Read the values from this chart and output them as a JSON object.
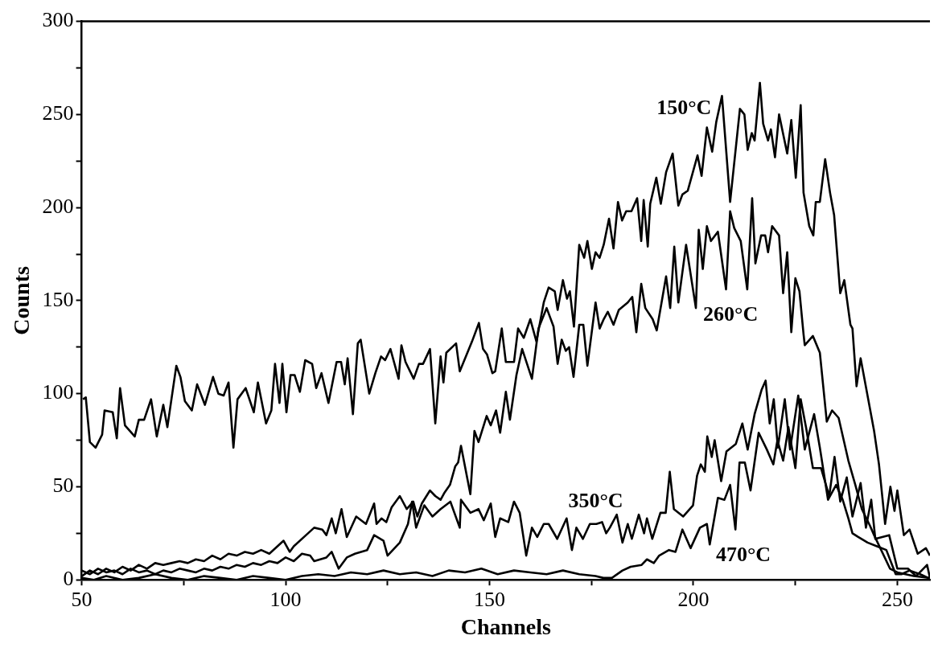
{
  "chart_data": {
    "type": "line",
    "xlabel": "Channels",
    "ylabel": "Counts",
    "xlim": [
      50,
      258
    ],
    "ylim": [
      0,
      300
    ],
    "xticks": [
      50,
      {
        "value": 75,
        "label": null
      },
      100,
      {
        "value": 125,
        "label": null
      },
      150,
      {
        "value": 175,
        "label": null
      },
      200,
      {
        "value": 225,
        "label": null
      },
      250
    ],
    "yticks": [
      0,
      {
        "value": 25,
        "label": null
      },
      50,
      {
        "value": 75,
        "label": null
      },
      100,
      {
        "value": 125,
        "label": null
      },
      150,
      {
        "value": 175,
        "label": null
      },
      200,
      {
        "value": 225,
        "label": null
      },
      250,
      {
        "value": 275,
        "label": null
      },
      300
    ],
    "series": [
      {
        "name": "150°C",
        "color": "#000000",
        "x": [
          50.3,
          51,
          52,
          53.4,
          55,
          55.6,
          57.6,
          58.6,
          59.4,
          60.6,
          63,
          64,
          65.3,
          67,
          68.4,
          70,
          71,
          73.2,
          74.2,
          75.3,
          77,
          78.3,
          80.2,
          82.2,
          83.5,
          84.8,
          86,
          87.2,
          88.2,
          90.2,
          92.2,
          93.2,
          95.2,
          96.5,
          97.4,
          98.5,
          99.2,
          100.2,
          101.2,
          102.2,
          103.5,
          104.8,
          106.5,
          107.5,
          108.8,
          110.5,
          112.5,
          113.6,
          114.5,
          115.2,
          116.5,
          117.7,
          118.4,
          120.5,
          122,
          123.4,
          124.4,
          125.7,
          127.7,
          128.4,
          129.4,
          131.4,
          132.7,
          133.7,
          135.4,
          136.7,
          138,
          138.7,
          139.4,
          141.8,
          142.7,
          145.7,
          147.4,
          148.4,
          149.4,
          150.7,
          151.4,
          153,
          154,
          156,
          157,
          158.4,
          160,
          161.5,
          163.3,
          164.5,
          166,
          166.7,
          168,
          169,
          169.7,
          170.7,
          172,
          173.2,
          174,
          175.1,
          176,
          177,
          178,
          179.3,
          180.4,
          181.5,
          182.5,
          183.5,
          184.8,
          186.2,
          187.2,
          187.8,
          188.8,
          189.4,
          190.9,
          192,
          193.3,
          194.9,
          196.3,
          197.3,
          198.6,
          201,
          202,
          203.3,
          204.6,
          205.6,
          207,
          209,
          211.4,
          212.5,
          213.3,
          214.3,
          215,
          216.3,
          217.1,
          218.3,
          219,
          220,
          221,
          223,
          224,
          225.1,
          226.3,
          227,
          228.4,
          229.4,
          230,
          231,
          232.3,
          233.5,
          234.5,
          236,
          237,
          238.5,
          239,
          240,
          241,
          244.3,
          245.5,
          247,
          248.3,
          249.3,
          250,
          251.6,
          253,
          255,
          257,
          258
        ],
        "values": [
          97,
          98,
          74,
          71,
          78,
          91,
          90,
          76,
          103,
          83,
          77,
          86,
          86,
          97,
          77,
          94,
          82,
          115,
          109,
          96,
          91,
          105,
          94,
          109,
          100,
          99,
          106,
          71,
          97,
          103,
          90,
          106,
          84,
          91,
          116,
          95,
          116,
          90,
          110,
          110,
          101,
          118,
          116,
          103,
          111,
          95,
          117,
          117,
          105,
          119,
          89,
          127,
          129,
          100,
          111,
          120,
          118,
          124,
          108,
          126,
          117,
          108,
          116,
          116,
          124,
          84,
          120,
          106,
          122,
          127,
          112,
          128,
          138,
          124,
          121,
          111,
          112,
          135,
          117,
          117,
          135,
          130,
          140,
          128,
          149,
          157,
          155,
          145,
          161,
          151,
          155,
          136,
          180,
          173,
          182,
          167,
          176,
          173,
          180,
          194,
          178,
          203,
          193,
          198,
          198,
          205,
          182,
          204,
          179,
          202,
          216,
          202,
          219,
          229,
          201,
          207,
          209,
          228,
          217,
          243,
          230,
          246,
          260,
          203,
          253,
          250,
          231,
          240,
          236,
          267,
          245,
          236,
          242,
          227,
          250,
          229,
          247,
          216,
          255,
          208,
          190,
          185,
          203,
          203,
          226,
          208,
          196,
          154,
          161,
          137,
          135,
          104,
          119,
          80,
          62,
          30,
          50,
          37,
          48,
          24,
          27,
          14,
          17,
          13
        ]
      },
      {
        "name": "260°C",
        "color": "#000000",
        "x": [
          50,
          52,
          54,
          56,
          58,
          60,
          62,
          64,
          66,
          68,
          70,
          72,
          74,
          76,
          78,
          80,
          82,
          84,
          86,
          88,
          90,
          92,
          94,
          96,
          98,
          99.5,
          101,
          102,
          105,
          107,
          109,
          110,
          111.3,
          112.3,
          113.7,
          115,
          117.3,
          119.7,
          121.7,
          122.3,
          123.5,
          124.7,
          126,
          128,
          129.7,
          131.3,
          132.3,
          133.4,
          135.4,
          136.7,
          138,
          139,
          140.3,
          141.6,
          142.3,
          143,
          145.3,
          146.3,
          147.3,
          149.3,
          150.3,
          151.6,
          152.6,
          154,
          155,
          156.6,
          158,
          160.4,
          162,
          164,
          165.7,
          166.7,
          167.7,
          168.7,
          169.5,
          170.6,
          172,
          173,
          174,
          176,
          177,
          178,
          179,
          180.4,
          181.7,
          183.9,
          185,
          186,
          187.2,
          188.2,
          190,
          191,
          193.3,
          194.3,
          195.3,
          196.3,
          198.2,
          200.6,
          201.3,
          202.3,
          203.3,
          204.3,
          206,
          208,
          209,
          210,
          211.6,
          213.2,
          214.4,
          215.2,
          216.6,
          217.6,
          218.3,
          219.3,
          221,
          222,
          223,
          224,
          225,
          226,
          227,
          227.3,
          229.3,
          231,
          232.7,
          234,
          235.6,
          238,
          239.7,
          241.3,
          243.3,
          244.3,
          248.2,
          250,
          254,
          258
        ],
        "values": [
          2,
          5,
          3,
          6,
          4,
          7,
          5,
          8,
          6,
          9,
          8,
          9,
          10,
          9,
          11,
          10,
          13,
          11,
          14,
          13,
          15,
          14,
          16,
          14,
          18,
          21,
          15,
          18,
          24,
          28,
          27,
          24,
          33,
          25,
          38,
          23,
          34,
          30,
          41,
          30,
          33,
          31,
          39,
          45,
          38,
          42,
          34,
          41,
          48,
          45,
          43,
          47,
          51,
          61,
          63,
          72,
          46,
          80,
          74,
          88,
          83,
          91,
          79,
          101,
          86,
          110,
          124,
          108,
          135,
          146,
          136,
          116,
          129,
          123,
          125,
          109,
          137,
          137,
          115,
          149,
          135,
          140,
          144,
          137,
          145,
          149,
          152,
          133,
          159,
          146,
          140,
          134,
          163,
          146,
          179,
          149,
          180,
          146,
          188,
          167,
          190,
          182,
          187,
          156,
          198,
          189,
          182,
          156,
          205,
          170,
          185,
          185,
          176,
          190,
          185,
          154,
          176,
          133,
          162,
          155,
          132,
          126,
          131,
          122,
          85,
          91,
          87,
          64,
          51,
          38,
          29,
          24,
          6,
          4,
          2,
          1
        ]
      },
      {
        "name": "350°C",
        "color": "#000000",
        "x": [
          50,
          52,
          54,
          56,
          58,
          60,
          62,
          64,
          66,
          68,
          70,
          72,
          74,
          76,
          78,
          80,
          82,
          84,
          86,
          88,
          90,
          92,
          94,
          96,
          98,
          100,
          102,
          104,
          106,
          107,
          110,
          111.3,
          113,
          115,
          117,
          120,
          121.7,
          124,
          125,
          128,
          130,
          131,
          132,
          134,
          136,
          138,
          140.4,
          142.7,
          143,
          145.3,
          147.3,
          148.6,
          150.3,
          151.4,
          152.6,
          154.6,
          156,
          157.4,
          159,
          160.4,
          161.7,
          163.3,
          164.5,
          166.6,
          168.9,
          170.2,
          171.3,
          172.9,
          174.6,
          176.2,
          177.6,
          178.6,
          179.5,
          181.2,
          182.6,
          183.9,
          184.9,
          186.6,
          187.9,
          188.6,
          189.9,
          191.9,
          193.2,
          194.2,
          195.2,
          197.5,
          199.9,
          200.9,
          201.8,
          202.8,
          203.4,
          204.5,
          205.2,
          206.8,
          208.1,
          210.4,
          212,
          213.3,
          215,
          216.7,
          217.7,
          218.7,
          219.7,
          220.7,
          222.4,
          223.7,
          225.7,
          227.3,
          229.6,
          231,
          233,
          235,
          236.6,
          238,
          239,
          240.4,
          242.7,
          245,
          247.3,
          249.6,
          251,
          253,
          255.6,
          257.6
        ],
        "values": [
          5,
          3,
          6,
          4,
          5,
          3,
          6,
          4,
          5,
          3,
          5,
          4,
          6,
          5,
          4,
          6,
          5,
          7,
          6,
          8,
          7,
          9,
          8,
          10,
          9,
          12,
          10,
          14,
          13,
          10,
          12,
          15,
          6,
          12,
          14,
          16,
          24,
          21,
          13,
          20,
          30,
          42,
          28,
          40,
          34,
          38,
          42,
          28,
          43,
          36,
          38,
          32,
          41,
          23,
          33,
          31,
          42,
          36,
          13,
          28,
          23,
          30,
          30,
          22,
          33,
          16,
          28,
          22,
          30,
          30,
          31,
          25,
          28,
          35,
          20,
          30,
          22,
          35,
          25,
          33,
          22,
          36,
          36,
          58,
          38,
          34,
          40,
          56,
          62,
          58,
          77,
          66,
          75,
          53,
          69,
          73,
          84,
          70,
          89,
          102,
          107,
          84,
          97,
          71,
          97,
          70,
          99,
          70,
          89,
          71,
          43,
          51,
          43,
          33,
          25,
          23,
          20,
          18,
          16,
          3,
          3,
          5,
          3,
          1
        ]
      },
      {
        "name": "470°C",
        "color": "#000000",
        "x": [
          50,
          53,
          56,
          60,
          64,
          68,
          72,
          76,
          80,
          84,
          88,
          92,
          96,
          100,
          104,
          108,
          112,
          116,
          120,
          124,
          128,
          132,
          136,
          140,
          144,
          148,
          152,
          156,
          160,
          164,
          168,
          172,
          176,
          177.9,
          180,
          182.6,
          184.6,
          187.3,
          188.6,
          190.3,
          191.6,
          194,
          195.6,
          197.3,
          199.3,
          201.6,
          203.3,
          204,
          206,
          207.6,
          209,
          210.3,
          211.3,
          212.6,
          214,
          216,
          218,
          219.6,
          220.6,
          222,
          223.3,
          225,
          226.3,
          227.6,
          229.3,
          231.3,
          233.3,
          234.6,
          236,
          237.6,
          239,
          241,
          242.3,
          243.6,
          244.6,
          248,
          250,
          252.6,
          254.6,
          257.3,
          258
        ],
        "values": [
          1,
          0,
          2,
          0,
          1,
          3,
          1,
          0,
          2,
          1,
          0,
          2,
          1,
          0,
          2,
          3,
          2,
          4,
          3,
          5,
          3,
          4,
          2,
          5,
          4,
          6,
          3,
          5,
          4,
          3,
          5,
          3,
          2,
          1,
          1,
          5,
          7,
          8,
          11,
          9,
          13,
          16,
          15,
          27,
          17,
          28,
          30,
          19,
          44,
          43,
          51,
          27,
          63,
          63,
          48,
          79,
          70,
          62,
          75,
          64,
          82,
          60,
          97,
          82,
          60,
          60,
          45,
          66,
          42,
          55,
          34,
          52,
          28,
          43,
          22,
          24,
          6,
          6,
          2,
          8,
          1
        ]
      }
    ]
  }
}
